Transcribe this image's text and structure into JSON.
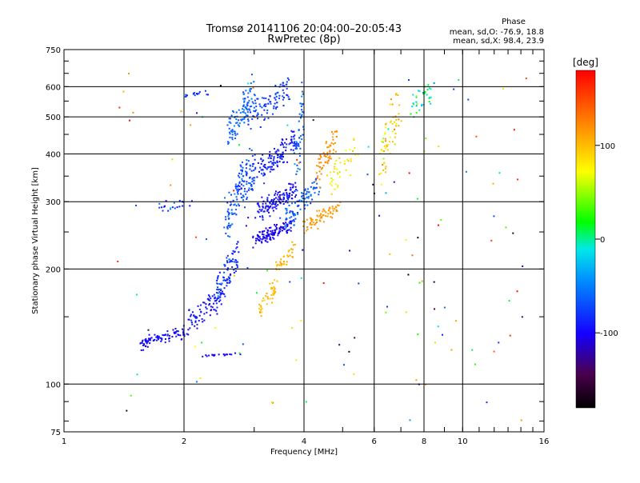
{
  "chart_data": {
    "type": "scatter",
    "title": "Tromsø 20141106 20:04:00–20:05:43",
    "subtitle": "RwPretec (8p)",
    "xlabel": "Frequency [MHz]",
    "ylabel": "Stationary phase Virtual Height [km]",
    "x_scale": "log",
    "y_scale": "log",
    "xlim": [
      1,
      16
    ],
    "ylim": [
      75,
      750
    ],
    "x_ticks": [
      {
        "value": 1,
        "label": "1"
      },
      {
        "value": 2,
        "label": "2"
      },
      {
        "value": 4,
        "label": "4"
      },
      {
        "value": 6,
        "label": "6"
      },
      {
        "value": 8,
        "label": "8"
      },
      {
        "value": 10,
        "label": "10"
      },
      {
        "value": 16,
        "label": "16"
      }
    ],
    "y_ticks": [
      {
        "value": 75,
        "label": "75"
      },
      {
        "value": 100,
        "label": "100"
      },
      {
        "value": 200,
        "label": "200"
      },
      {
        "value": 300,
        "label": "300"
      },
      {
        "value": 400,
        "label": "400"
      },
      {
        "value": 500,
        "label": "500"
      },
      {
        "value": 600,
        "label": "600"
      },
      {
        "value": 750,
        "label": "750"
      }
    ],
    "grid": true,
    "stats": {
      "header": "Phase",
      "line1": "mean, sd,O: -76.9, 18.8",
      "line2": "mean, sd,X:  98.4, 23.9"
    },
    "colorbar": {
      "label": "[deg]",
      "range": [
        -180,
        180
      ],
      "ticks": [
        {
          "value": 100,
          "label": "100"
        },
        {
          "value": 0,
          "label": "0"
        },
        {
          "value": -100,
          "label": "-100"
        }
      ]
    },
    "traces": [
      {
        "f0": 1.55,
        "f1": 2.05,
        "h0": 125,
        "h1": 140,
        "n": 90,
        "jf": 0.025,
        "jh": 0.04,
        "phase": -100,
        "sp": 20
      },
      {
        "f0": 2.05,
        "f1": 2.55,
        "h0": 135,
        "h1": 185,
        "n": 80,
        "jf": 0.02,
        "jh": 0.04,
        "phase": -95,
        "sp": 25
      },
      {
        "f0": 2.4,
        "f1": 2.75,
        "h0": 160,
        "h1": 240,
        "n": 90,
        "jf": 0.02,
        "jh": 0.04,
        "phase": -80,
        "sp": 25
      },
      {
        "f0": 2.55,
        "f1": 3.0,
        "h0": 240,
        "h1": 420,
        "n": 140,
        "jf": 0.03,
        "jh": 0.06,
        "phase": -70,
        "sp": 30
      },
      {
        "f0": 2.6,
        "f1": 3.0,
        "h0": 420,
        "h1": 640,
        "n": 100,
        "jf": 0.03,
        "jh": 0.05,
        "phase": -60,
        "sp": 25
      },
      {
        "f0": 3.0,
        "f1": 3.7,
        "h0": 230,
        "h1": 270,
        "n": 120,
        "jf": 0.03,
        "jh": 0.035,
        "phase": -105,
        "sp": 20
      },
      {
        "f0": 3.05,
        "f1": 3.8,
        "h0": 270,
        "h1": 340,
        "n": 130,
        "jf": 0.03,
        "jh": 0.05,
        "phase": -95,
        "sp": 25
      },
      {
        "f0": 3.1,
        "f1": 3.8,
        "h0": 340,
        "h1": 460,
        "n": 120,
        "jf": 0.03,
        "jh": 0.05,
        "phase": -90,
        "sp": 25
      },
      {
        "f0": 2.9,
        "f1": 3.7,
        "h0": 460,
        "h1": 640,
        "n": 90,
        "jf": 0.03,
        "jh": 0.05,
        "phase": -75,
        "sp": 25
      },
      {
        "f0": 3.55,
        "f1": 4.35,
        "h0": 250,
        "h1": 350,
        "n": 90,
        "jf": 0.025,
        "jh": 0.04,
        "phase": -65,
        "sp": 25
      },
      {
        "f0": 3.8,
        "f1": 4.0,
        "h0": 300,
        "h1": 640,
        "n": 50,
        "jf": 0.015,
        "jh": 0.06,
        "phase": -60,
        "sp": 25
      },
      {
        "f0": 3.1,
        "f1": 3.4,
        "h0": 150,
        "h1": 190,
        "n": 40,
        "jf": 0.02,
        "jh": 0.03,
        "phase": 100,
        "sp": 15
      },
      {
        "f0": 3.4,
        "f1": 3.8,
        "h0": 190,
        "h1": 240,
        "n": 35,
        "jf": 0.02,
        "jh": 0.03,
        "phase": 105,
        "sp": 15
      },
      {
        "f0": 4.0,
        "f1": 4.9,
        "h0": 248,
        "h1": 300,
        "n": 70,
        "jf": 0.02,
        "jh": 0.03,
        "phase": 115,
        "sp": 15
      },
      {
        "f0": 4.3,
        "f1": 4.8,
        "h0": 330,
        "h1": 470,
        "n": 60,
        "jf": 0.025,
        "jh": 0.05,
        "phase": 120,
        "sp": 15
      },
      {
        "f0": 4.6,
        "f1": 5.5,
        "h0": 300,
        "h1": 470,
        "n": 40,
        "jf": 0.03,
        "jh": 0.05,
        "phase": 80,
        "sp": 40
      },
      {
        "f0": 6.2,
        "f1": 6.9,
        "h0": 330,
        "h1": 620,
        "n": 60,
        "jf": 0.03,
        "jh": 0.06,
        "phase": 90,
        "sp": 60
      },
      {
        "f0": 7.4,
        "f1": 8.4,
        "h0": 500,
        "h1": 620,
        "n": 35,
        "jf": 0.03,
        "jh": 0.05,
        "phase": 20,
        "sp": 90
      },
      {
        "f0": 1.7,
        "f1": 2.1,
        "h0": 280,
        "h1": 310,
        "n": 20,
        "jf": 0.03,
        "jh": 0.04,
        "phase": -80,
        "sp": 40
      },
      {
        "f0": 2.0,
        "f1": 2.35,
        "h0": 560,
        "h1": 590,
        "n": 15,
        "jf": 0.02,
        "jh": 0.02,
        "phase": -80,
        "sp": 20
      },
      {
        "f0": 2.15,
        "f1": 2.75,
        "h0": 118,
        "h1": 120,
        "n": 20,
        "jf": 0.02,
        "jh": 0.01,
        "phase": -100,
        "sp": 15
      }
    ],
    "sparse": {
      "count": 130,
      "x_range": [
        1.3,
        14.5
      ],
      "y_range": [
        80,
        650
      ]
    }
  }
}
